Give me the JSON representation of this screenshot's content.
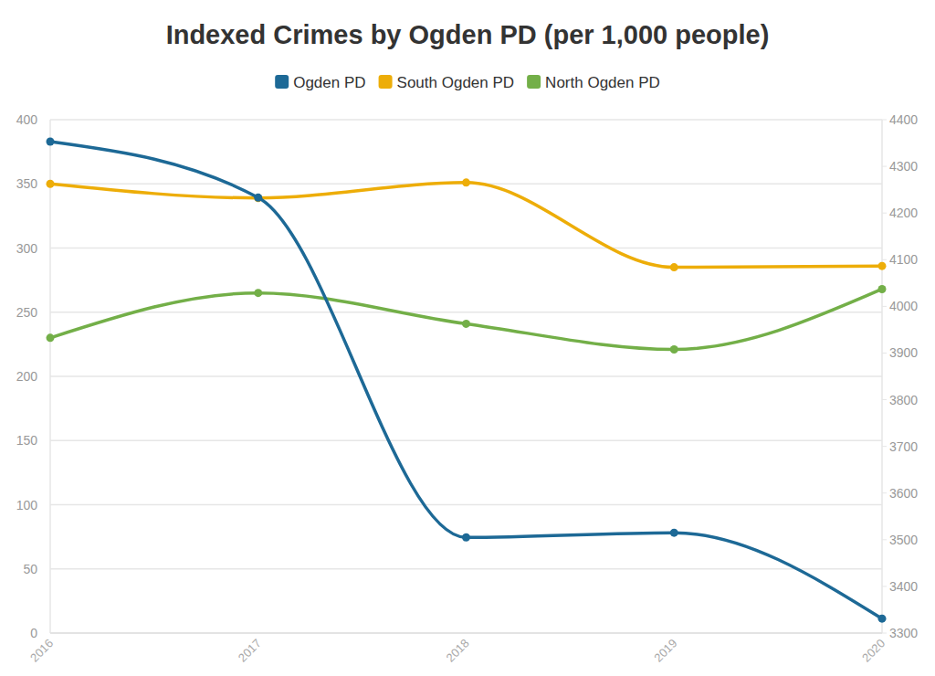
{
  "chart_data": {
    "type": "line",
    "title": "Indexed Crimes by Ogden PD (per 1,000 people)",
    "categories": [
      "2016",
      "2017",
      "2018",
      "2019",
      "2020"
    ],
    "series": [
      {
        "name": "Ogden PD",
        "color": "#1d6996",
        "values": [
          4353,
          4233,
          3505,
          3515,
          3331
        ],
        "axis": "y2",
        "marker": "circle"
      },
      {
        "name": "South Ogden PD",
        "color": "#edad08",
        "values": [
          350,
          339,
          351,
          285,
          286
        ],
        "marker": "circle"
      },
      {
        "name": "North Ogden PD",
        "color": "#73af48",
        "values": [
          230,
          265,
          241,
          221,
          268
        ],
        "marker": "circle"
      }
    ],
    "ylim": [
      0,
      400
    ],
    "yticks": [
      0,
      50,
      100,
      150,
      200,
      250,
      300,
      350,
      400
    ],
    "y2lim": [
      3300,
      4400
    ],
    "y2ticks": [
      3300,
      3400,
      3500,
      3600,
      3700,
      3800,
      3900,
      4000,
      4100,
      4200,
      4300,
      4400
    ],
    "grid": true,
    "legend": "top"
  }
}
